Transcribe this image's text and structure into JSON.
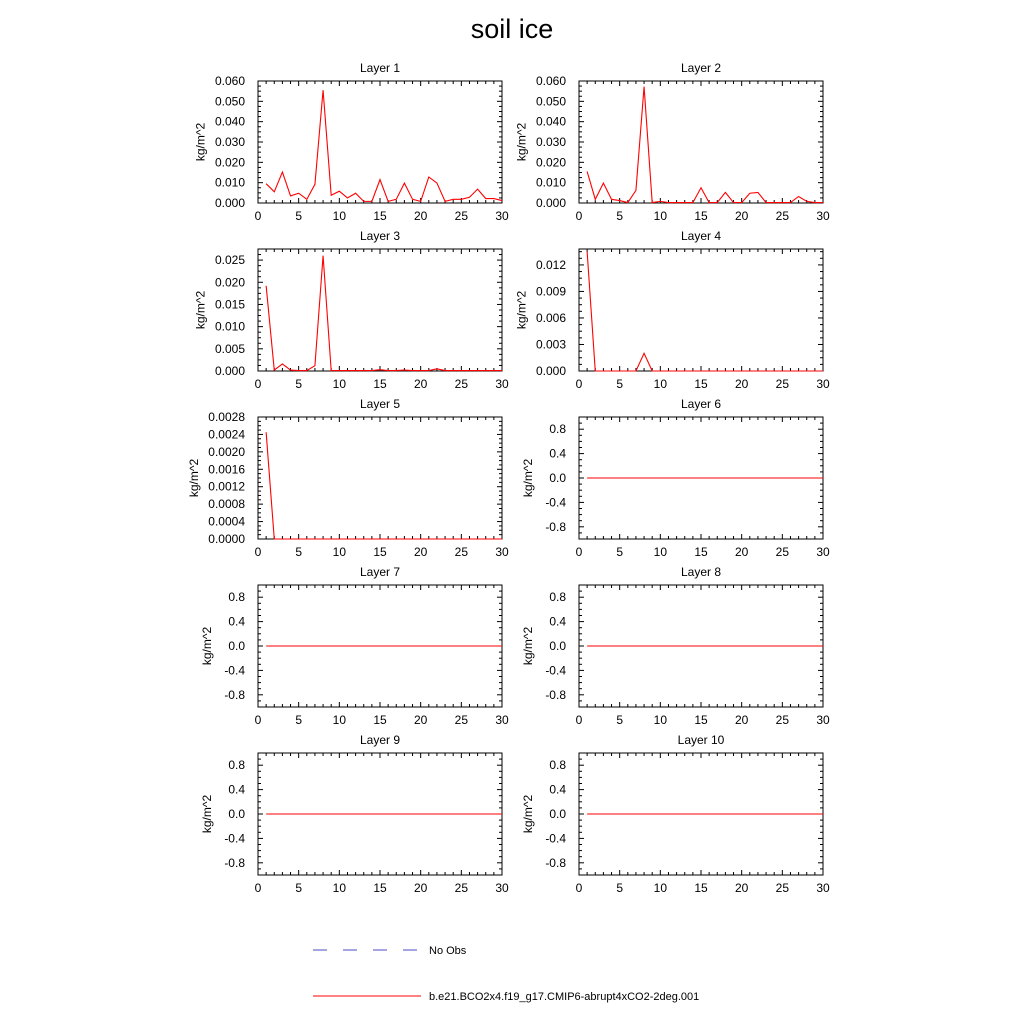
{
  "figure": {
    "title": "soil ice"
  },
  "legend": {
    "entries": [
      {
        "label": "No Obs",
        "color": "#4b4bc8",
        "style": "dashed"
      },
      {
        "label": "b.e21.BCO2x4.f19_g17.CMIP6-abrupt4xCO2-2deg.001",
        "color": "#ff0000",
        "style": "solid"
      }
    ]
  },
  "chart_data": [
    {
      "type": "line",
      "title": "Layer 1",
      "ylabel": "kg/m^2",
      "xlabel": "",
      "xlim": [
        0,
        30
      ],
      "ylim": [
        0,
        0.06
      ],
      "xticks": [
        0,
        5,
        10,
        15,
        20,
        25,
        30
      ],
      "yticks": [
        0,
        0.01,
        0.02,
        0.03,
        0.04,
        0.05,
        0.06
      ],
      "ytick_decimals": 3,
      "series": [
        {
          "name": "b.e21.BCO2x4.f19_g17.CMIP6-abrupt4xCO2-2deg.001",
          "color": "#ff0000",
          "x": [
            1,
            2,
            3,
            4,
            5,
            6,
            7,
            8,
            9,
            10,
            11,
            12,
            13,
            14,
            15,
            16,
            17,
            18,
            19,
            20,
            21,
            22,
            23,
            24,
            25,
            26,
            27,
            28,
            29,
            30
          ],
          "y": [
            0.0095,
            0.0055,
            0.0152,
            0.0035,
            0.0048,
            0.0018,
            0.0092,
            0.0555,
            0.0038,
            0.0058,
            0.0025,
            0.0048,
            0.0008,
            0.0008,
            0.0115,
            0.0008,
            0.0018,
            0.0098,
            0.0018,
            0.0008,
            0.0128,
            0.0098,
            0.0008,
            0.0018,
            0.0018,
            0.0028,
            0.0068,
            0.0022,
            0.0022,
            0.0012
          ]
        }
      ]
    },
    {
      "type": "line",
      "title": "Layer 2",
      "ylabel": "kg/m^2",
      "xlabel": "",
      "xlim": [
        0,
        30
      ],
      "ylim": [
        0,
        0.06
      ],
      "xticks": [
        0,
        5,
        10,
        15,
        20,
        25,
        30
      ],
      "yticks": [
        0,
        0.01,
        0.02,
        0.03,
        0.04,
        0.05,
        0.06
      ],
      "ytick_decimals": 3,
      "series": [
        {
          "name": "b.e21.BCO2x4.f19_g17.CMIP6-abrupt4xCO2-2deg.001",
          "color": "#ff0000",
          "x": [
            1,
            2,
            3,
            4,
            5,
            6,
            7,
            8,
            9,
            10,
            11,
            12,
            13,
            14,
            15,
            16,
            17,
            18,
            19,
            20,
            21,
            22,
            23,
            24,
            25,
            26,
            27,
            28,
            29,
            30
          ],
          "y": [
            0.0155,
            0.0018,
            0.0098,
            0.0018,
            0.0012,
            0.0002,
            0.0062,
            0.0572,
            0.0002,
            0.0008,
            0.0002,
            0.0002,
            0.0002,
            0.0002,
            0.0075,
            0.0002,
            0.0002,
            0.0052,
            0.0002,
            0.0002,
            0.0048,
            0.0052,
            0.0002,
            0.0002,
            0.0002,
            0.0002,
            0.0032,
            0.0008,
            0.0002,
            0.0002
          ]
        }
      ]
    },
    {
      "type": "line",
      "title": "Layer 3",
      "ylabel": "kg/m^2",
      "xlabel": "",
      "xlim": [
        0,
        30
      ],
      "ylim": [
        0,
        0.0275
      ],
      "xticks": [
        0,
        5,
        10,
        15,
        20,
        25,
        30
      ],
      "yticks": [
        0,
        0.005,
        0.01,
        0.015,
        0.02,
        0.025
      ],
      "ytick_decimals": 3,
      "series": [
        {
          "name": "b.e21.BCO2x4.f19_g17.CMIP6-abrupt4xCO2-2deg.001",
          "color": "#ff0000",
          "x": [
            1,
            2,
            3,
            4,
            5,
            6,
            7,
            8,
            9,
            10,
            11,
            12,
            13,
            14,
            15,
            16,
            17,
            18,
            19,
            20,
            21,
            22,
            23,
            24,
            25,
            26,
            27,
            28,
            29,
            30
          ],
          "y": [
            0.0192,
            0.0002,
            0.0016,
            0.0002,
            0.0001,
            0.0001,
            0.0012,
            0.026,
            0.0001,
            0.0001,
            0.0001,
            0.0001,
            0.0001,
            0.0001,
            0.0003,
            0.0001,
            0.0001,
            0.0002,
            0.0001,
            0.0001,
            0.0001,
            0.0005,
            0.0001,
            0.0001,
            0.0001,
            0.0001,
            0.0001,
            0.0001,
            0.0001,
            0.0001
          ]
        }
      ]
    },
    {
      "type": "line",
      "title": "Layer 4",
      "ylabel": "kg/m^2",
      "xlabel": "",
      "xlim": [
        0,
        30
      ],
      "ylim": [
        0,
        0.0138
      ],
      "xticks": [
        0,
        5,
        10,
        15,
        20,
        25,
        30
      ],
      "yticks": [
        0,
        0.003,
        0.006,
        0.009,
        0.012
      ],
      "ytick_decimals": 3,
      "series": [
        {
          "name": "b.e21.BCO2x4.f19_g17.CMIP6-abrupt4xCO2-2deg.001",
          "color": "#ff0000",
          "x": [
            1,
            2,
            3,
            4,
            5,
            6,
            7,
            8,
            9,
            10,
            11,
            12,
            13,
            14,
            15,
            16,
            17,
            18,
            19,
            20,
            21,
            22,
            23,
            24,
            25,
            26,
            27,
            28,
            29,
            30
          ],
          "y": [
            0.0135,
            0,
            0,
            0,
            0,
            0,
            0,
            0.002,
            0,
            0,
            0,
            0,
            0,
            0,
            0,
            0,
            0,
            0,
            0,
            0,
            0,
            0,
            0,
            0,
            0,
            0,
            0,
            0,
            0,
            0
          ]
        }
      ]
    },
    {
      "type": "line",
      "title": "Layer 5",
      "ylabel": "kg/m^2",
      "xlabel": "",
      "xlim": [
        0,
        30
      ],
      "ylim": [
        0,
        0.0028
      ],
      "xticks": [
        0,
        5,
        10,
        15,
        20,
        25,
        30
      ],
      "yticks": [
        0,
        0.0004,
        0.0008,
        0.0012,
        0.0016,
        0.002,
        0.0024,
        0.0028
      ],
      "ytick_decimals": 4,
      "series": [
        {
          "name": "b.e21.BCO2x4.f19_g17.CMIP6-abrupt4xCO2-2deg.001",
          "color": "#ff0000",
          "x": [
            1,
            2,
            3,
            4,
            5,
            6,
            7,
            8,
            9,
            10,
            11,
            12,
            13,
            14,
            15,
            16,
            17,
            18,
            19,
            20,
            21,
            22,
            23,
            24,
            25,
            26,
            27,
            28,
            29,
            30
          ],
          "y": [
            0.00245,
            0,
            0,
            0,
            0,
            0,
            0,
            0,
            0,
            0,
            0,
            0,
            0,
            0,
            0,
            0,
            0,
            0,
            0,
            0,
            0,
            0,
            0,
            0,
            0,
            0,
            0,
            0,
            0,
            0
          ]
        }
      ]
    },
    {
      "type": "line",
      "title": "Layer 6",
      "ylabel": "kg/m^2",
      "xlabel": "",
      "xlim": [
        0,
        30
      ],
      "ylim": [
        -1,
        1
      ],
      "xticks": [
        0,
        5,
        10,
        15,
        20,
        25,
        30
      ],
      "yticks": [
        -0.8,
        -0.4,
        0,
        0.4,
        0.8
      ],
      "ytick_decimals": 1,
      "series": [
        {
          "name": "b.e21.BCO2x4.f19_g17.CMIP6-abrupt4xCO2-2deg.001",
          "color": "#ff0000",
          "x": [
            1,
            30
          ],
          "y": [
            0,
            0
          ]
        }
      ]
    },
    {
      "type": "line",
      "title": "Layer 7",
      "ylabel": "kg/m^2",
      "xlabel": "",
      "xlim": [
        0,
        30
      ],
      "ylim": [
        -1,
        1
      ],
      "xticks": [
        0,
        5,
        10,
        15,
        20,
        25,
        30
      ],
      "yticks": [
        -0.8,
        -0.4,
        0,
        0.4,
        0.8
      ],
      "ytick_decimals": 1,
      "series": [
        {
          "name": "b.e21.BCO2x4.f19_g17.CMIP6-abrupt4xCO2-2deg.001",
          "color": "#ff0000",
          "x": [
            1,
            30
          ],
          "y": [
            0,
            0
          ]
        }
      ]
    },
    {
      "type": "line",
      "title": "Layer 8",
      "ylabel": "kg/m^2",
      "xlabel": "",
      "xlim": [
        0,
        30
      ],
      "ylim": [
        -1,
        1
      ],
      "xticks": [
        0,
        5,
        10,
        15,
        20,
        25,
        30
      ],
      "yticks": [
        -0.8,
        -0.4,
        0,
        0.4,
        0.8
      ],
      "ytick_decimals": 1,
      "series": [
        {
          "name": "b.e21.BCO2x4.f19_g17.CMIP6-abrupt4xCO2-2deg.001",
          "color": "#ff0000",
          "x": [
            1,
            30
          ],
          "y": [
            0,
            0
          ]
        }
      ]
    },
    {
      "type": "line",
      "title": "Layer 9",
      "ylabel": "kg/m^2",
      "xlabel": "",
      "xlim": [
        0,
        30
      ],
      "ylim": [
        -1,
        1
      ],
      "xticks": [
        0,
        5,
        10,
        15,
        20,
        25,
        30
      ],
      "yticks": [
        -0.8,
        -0.4,
        0,
        0.4,
        0.8
      ],
      "ytick_decimals": 1,
      "series": [
        {
          "name": "b.e21.BCO2x4.f19_g17.CMIP6-abrupt4xCO2-2deg.001",
          "color": "#ff0000",
          "x": [
            1,
            30
          ],
          "y": [
            0,
            0
          ]
        }
      ]
    },
    {
      "type": "line",
      "title": "Layer 10",
      "ylabel": "kg/m^2",
      "xlabel": "",
      "xlim": [
        0,
        30
      ],
      "ylim": [
        -1,
        1
      ],
      "xticks": [
        0,
        5,
        10,
        15,
        20,
        25,
        30
      ],
      "yticks": [
        -0.8,
        -0.4,
        0,
        0.4,
        0.8
      ],
      "ytick_decimals": 1,
      "series": [
        {
          "name": "b.e21.BCO2x4.f19_g17.CMIP6-abrupt4xCO2-2deg.001",
          "color": "#ff0000",
          "x": [
            1,
            30
          ],
          "y": [
            0,
            0
          ]
        }
      ]
    }
  ]
}
